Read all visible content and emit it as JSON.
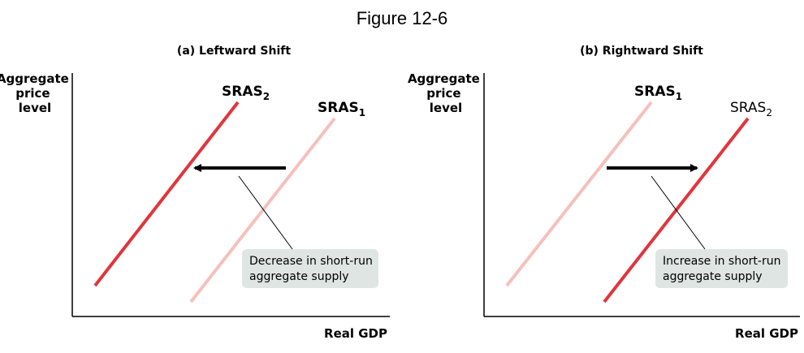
{
  "figure_title": "Figure 12-6",
  "colors": {
    "sras_shifted": "#e0353d",
    "sras_original": "#f5c0bc",
    "arrow": "#000000",
    "callout_box": "#dfe5e3",
    "axis": "#000000"
  },
  "panels": [
    {
      "title": "(a) Leftward Shift",
      "y_axis_label": [
        "Aggregate",
        "price",
        "level"
      ],
      "x_axis_label": "Real GDP",
      "curves": [
        {
          "label_main": "SRAS",
          "label_sub": "2",
          "color_role": "sras_shifted"
        },
        {
          "label_main": "SRAS",
          "label_sub": "1",
          "color_role": "sras_original"
        }
      ],
      "arrow_direction": "left",
      "callout": [
        "Decrease in short-run",
        "aggregate supply"
      ]
    },
    {
      "title": "(b) Rightward Shift",
      "y_axis_label": [
        "Aggregate",
        "price",
        "level"
      ],
      "x_axis_label": "Real GDP",
      "curves": [
        {
          "label_main": "SRAS",
          "label_sub": "1",
          "color_role": "sras_original"
        },
        {
          "label_main": "SRAS",
          "label_sub": "2",
          "color_role": "sras_shifted"
        }
      ],
      "arrow_direction": "right",
      "callout": [
        "Increase in short-run",
        "aggregate supply"
      ]
    }
  ]
}
